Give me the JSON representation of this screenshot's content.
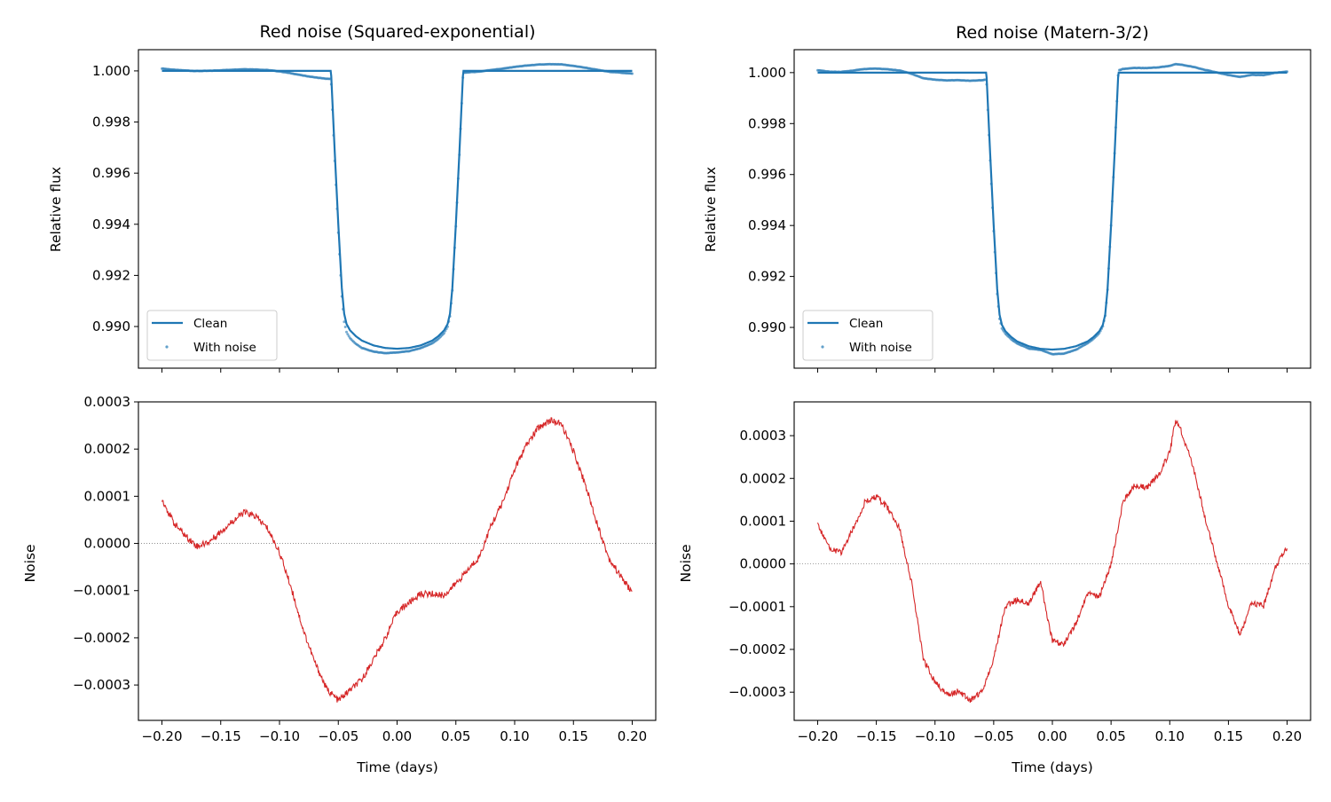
{
  "chart_data": [
    {
      "type": "line",
      "title": "Red noise (Squared-exponential)",
      "xlabel": "",
      "ylabel": "Relative flux",
      "xlim": [
        -0.22,
        0.22
      ],
      "ylim": [
        0.98837,
        1.00083
      ],
      "xticks": [
        -0.2,
        -0.15,
        -0.1,
        -0.05,
        0.0,
        0.05,
        0.1,
        0.15,
        0.2
      ],
      "xticklabels_shown": false,
      "yticks": [
        0.99,
        0.992,
        0.994,
        0.996,
        0.998,
        1.0
      ],
      "yticklabels": [
        "0.990",
        "0.992",
        "0.994",
        "0.996",
        "0.998",
        "1.000"
      ],
      "legend": {
        "placement": "lower-left",
        "entries": [
          "Clean",
          "With noise"
        ]
      },
      "noise_source": "Squared-exponential",
      "series": [
        {
          "name": "Clean",
          "style": "line",
          "color": "#1f77b4"
        },
        {
          "name": "With noise",
          "style": "scatter",
          "color": "#1f77b4"
        }
      ]
    },
    {
      "type": "line",
      "title": "",
      "xlabel": "Time (days)",
      "ylabel": "Noise",
      "xlim": [
        -0.22,
        0.22
      ],
      "ylim": [
        -0.000375,
        0.0003
      ],
      "xticks": [
        -0.2,
        -0.15,
        -0.1,
        -0.05,
        0.0,
        0.05,
        0.1,
        0.15,
        0.2
      ],
      "xticklabels": [
        "−0.20",
        "−0.15",
        "−0.10",
        "−0.05",
        "0.00",
        "0.05",
        "0.10",
        "0.15",
        "0.20"
      ],
      "yticks": [
        -0.0003,
        -0.0002,
        -0.0001,
        0.0,
        0.0001,
        0.0002,
        0.0003
      ],
      "yticklabels": [
        "−0.0003",
        "−0.0002",
        "−0.0001",
        "0.0000",
        "0.0001",
        "0.0002",
        "0.0003"
      ],
      "zero_line": true,
      "series": [
        {
          "style": "line",
          "color": "#d62728",
          "x": [
            -0.2,
            -0.19,
            -0.18,
            -0.17,
            -0.16,
            -0.15,
            -0.14,
            -0.13,
            -0.12,
            -0.11,
            -0.1,
            -0.09,
            -0.08,
            -0.07,
            -0.06,
            -0.05,
            -0.04,
            -0.03,
            -0.02,
            -0.01,
            0.0,
            0.01,
            0.02,
            0.03,
            0.04,
            0.05,
            0.06,
            0.07,
            0.08,
            0.09,
            0.1,
            0.11,
            0.12,
            0.13,
            0.14,
            0.15,
            0.16,
            0.17,
            0.18,
            0.19,
            0.2
          ],
          "y": [
            9.4e-05,
            4.4e-05,
            1.6e-05,
            -6e-06,
            3e-06,
            2.5e-05,
            4.7e-05,
            6.6e-05,
            5.7e-05,
            3.1e-05,
            -1.9e-05,
            -9.4e-05,
            -0.000182,
            -0.000252,
            -0.000308,
            -0.000333,
            -0.000311,
            -0.000289,
            -0.000245,
            -0.000201,
            -0.000145,
            -0.000126,
            -0.000107,
            -0.000107,
            -0.00011,
            -8.5e-05,
            -5.7e-05,
            -2.8e-05,
            3.8e-05,
            8.8e-05,
            0.000157,
            0.000208,
            0.000245,
            0.000261,
            0.000252,
            0.000195,
            0.000126,
            4.4e-05,
            -3.1e-05,
            -6.9e-05,
            -0.000104
          ]
        }
      ]
    },
    {
      "type": "line",
      "title": "Red noise (Matern-3/2)",
      "xlabel": "",
      "ylabel": "Relative flux",
      "xlim": [
        -0.22,
        0.22
      ],
      "ylim": [
        0.9884,
        1.0009
      ],
      "xticks": [
        -0.2,
        -0.15,
        -0.1,
        -0.05,
        0.0,
        0.05,
        0.1,
        0.15,
        0.2
      ],
      "xticklabels_shown": false,
      "yticks": [
        0.99,
        0.992,
        0.994,
        0.996,
        0.998,
        1.0
      ],
      "yticklabels": [
        "0.990",
        "0.992",
        "0.994",
        "0.996",
        "0.998",
        "1.000"
      ],
      "legend": {
        "placement": "lower-left",
        "entries": [
          "Clean",
          "With noise"
        ]
      },
      "noise_source": "Matern-3/2",
      "series": [
        {
          "name": "Clean",
          "style": "line",
          "color": "#1f77b4"
        },
        {
          "name": "With noise",
          "style": "scatter",
          "color": "#1f77b4"
        }
      ]
    },
    {
      "type": "line",
      "title": "",
      "xlabel": "Time (days)",
      "ylabel": "Noise",
      "xlim": [
        -0.22,
        0.22
      ],
      "ylim": [
        -0.000366,
        0.000379
      ],
      "xticks": [
        -0.2,
        -0.15,
        -0.1,
        -0.05,
        0.0,
        0.05,
        0.1,
        0.15,
        0.2
      ],
      "xticklabels": [
        "−0.20",
        "−0.15",
        "−0.10",
        "−0.05",
        "0.00",
        "0.05",
        "0.10",
        "0.15",
        "0.20"
      ],
      "yticks": [
        -0.0003,
        -0.0002,
        -0.0001,
        0.0,
        0.0001,
        0.0002,
        0.0003
      ],
      "yticklabels": [
        "−0.0003",
        "−0.0002",
        "−0.0001",
        "0.0000",
        "0.0001",
        "0.0002",
        "0.0003"
      ],
      "zero_line": true,
      "series": [
        {
          "style": "line",
          "color": "#d62728",
          "x": [
            -0.2,
            -0.19,
            -0.18,
            -0.17,
            -0.16,
            -0.15,
            -0.14,
            -0.13,
            -0.12,
            -0.11,
            -0.1,
            -0.09,
            -0.08,
            -0.07,
            -0.06,
            -0.05,
            -0.04,
            -0.03,
            -0.02,
            -0.01,
            0.0,
            0.01,
            0.02,
            0.03,
            0.04,
            0.05,
            0.06,
            0.07,
            0.08,
            0.09,
            0.1,
            0.105,
            0.11,
            0.12,
            0.13,
            0.14,
            0.15,
            0.16,
            0.17,
            0.18,
            0.19,
            0.2
          ],
          "y": [
            9.2e-05,
            3.7e-05,
            2.6e-05,
            8.1e-05,
            0.000143,
            0.000157,
            0.00013,
            8.1e-05,
            -4.3e-05,
            -0.000222,
            -0.000277,
            -0.000305,
            -0.000298,
            -0.000319,
            -0.000298,
            -0.000222,
            -9.8e-05,
            -8.4e-05,
            -9.1e-05,
            -4.3e-05,
            -0.000181,
            -0.000188,
            -0.000139,
            -7e-05,
            -7.7e-05,
            -1e-06,
            0.000143,
            0.000185,
            0.000178,
            0.000206,
            0.000261,
            0.000337,
            0.000309,
            0.000226,
            0.000109,
            6e-06,
            -9.8e-05,
            -0.000167,
            -9.1e-05,
            -9.8e-05,
            -8e-06,
            4e-05
          ]
        }
      ]
    }
  ],
  "clean_model": {
    "x": [
      -0.2,
      -0.0562,
      -0.055,
      -0.053,
      -0.05,
      -0.047,
      -0.045,
      -0.043,
      -0.04,
      -0.035,
      -0.03,
      -0.02,
      -0.01,
      0.0,
      0.01,
      0.02,
      0.03,
      0.035,
      0.04,
      0.043,
      0.045,
      0.047,
      0.05,
      0.053,
      0.055,
      0.0562,
      0.2
    ],
    "flux": [
      1.0,
      1.0,
      0.9988,
      0.9968,
      0.994,
      0.9915,
      0.9905,
      0.9901,
      0.98985,
      0.98962,
      0.98945,
      0.98926,
      0.98916,
      0.98913,
      0.98916,
      0.98926,
      0.98945,
      0.98962,
      0.98985,
      0.9901,
      0.9905,
      0.9915,
      0.994,
      0.9968,
      0.9988,
      1.0,
      1.0
    ]
  }
}
